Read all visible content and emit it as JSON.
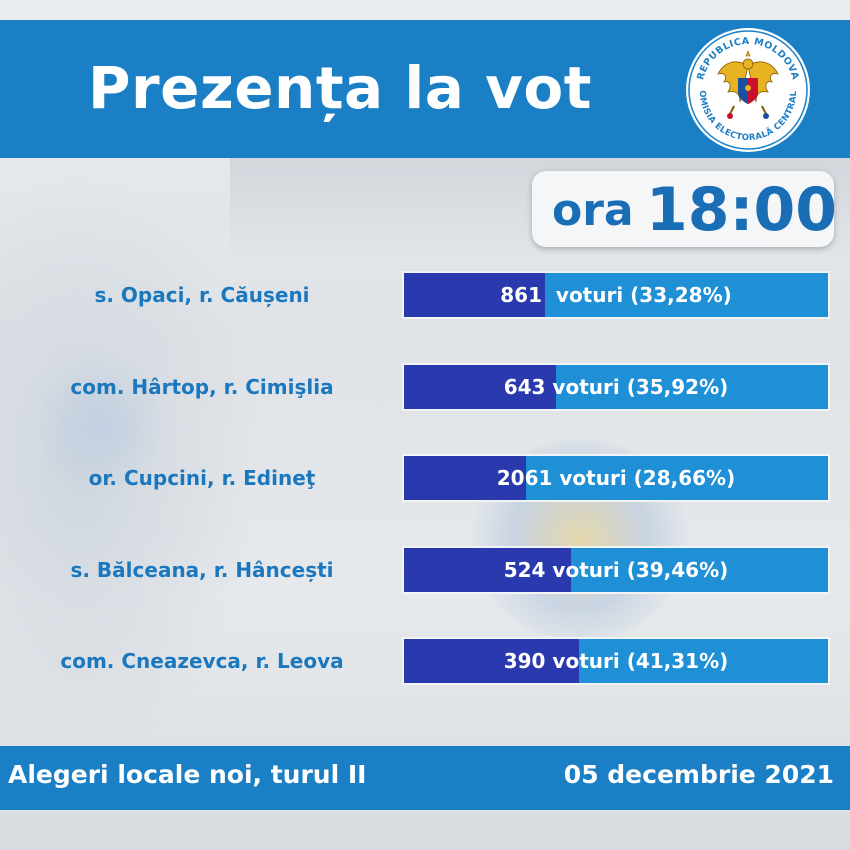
{
  "header": {
    "title": "Prezența la vot",
    "emblem_text_top": "REPUBLICA MOLDOVA",
    "emblem_text_bottom": "COMISIA ELECTORALĂ CENTRALĂ"
  },
  "time": {
    "prefix": "ora",
    "value": "18:00"
  },
  "chart_data": {
    "type": "bar",
    "orientation": "horizontal",
    "categories": [
      "s. Opaci, r. Căușeni",
      "com. Hârtop, r. Cimişlia",
      "or. Cupcini, r. Edineţ",
      "s. Bălceana, r. Hâncești",
      "com. Cneazevca, r. Leova"
    ],
    "labels": [
      "861  voturi (33,28%)",
      "643 voturi (35,92%)",
      "2061 voturi (28,66%)",
      "524 voturi (39,46%)",
      "390 voturi (41,31%)"
    ],
    "votes": [
      861,
      643,
      2061,
      524,
      390
    ],
    "percent": [
      33.28,
      35.92,
      28.66,
      39.46,
      41.31
    ],
    "colors": {
      "bar_track": "#1f8fd6",
      "bar_fill": "#2a3aae",
      "label": "#1b78be"
    }
  },
  "footer": {
    "left": "Alegeri locale noi, turul II",
    "right": "05 decembrie 2021"
  }
}
